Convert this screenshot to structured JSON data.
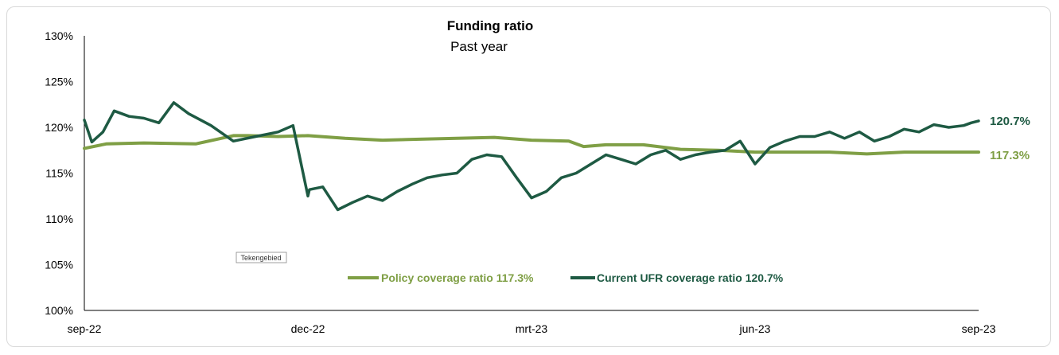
{
  "chart_data": {
    "type": "line",
    "title": "Funding ratio",
    "subtitle": "Past year",
    "ylim": [
      100,
      130
    ],
    "y_ticks": [
      "100%",
      "105%",
      "110%",
      "115%",
      "120%",
      "125%",
      "130%"
    ],
    "y_tick_values": [
      100,
      105,
      110,
      115,
      120,
      125,
      130
    ],
    "x_ticks": [
      "sep-22",
      "dec-22",
      "mrt-23",
      "jun-23",
      "sep-23"
    ],
    "x_tick_values": [
      0,
      3,
      6,
      9,
      12
    ],
    "xlim": [
      0,
      12
    ],
    "grid": false,
    "legend_position": "bottom-center",
    "drawing_area_label": "Tekengebied",
    "series": [
      {
        "name": "Policy coverage ratio 117.3%",
        "color": "#7f9f45",
        "end_label": "117.3%",
        "x": [
          0,
          0.3,
          0.8,
          1.5,
          2.0,
          2.2,
          2.6,
          3.0,
          3.5,
          4.0,
          4.5,
          5.0,
          5.5,
          6.0,
          6.5,
          6.7,
          7.0,
          7.5,
          8.0,
          8.5,
          9.0,
          9.5,
          10.0,
          10.5,
          11.0,
          11.5,
          12.0
        ],
        "y": [
          117.7,
          118.2,
          118.3,
          118.2,
          119.1,
          119.1,
          119.0,
          119.1,
          118.8,
          118.6,
          118.7,
          118.8,
          118.9,
          118.6,
          118.5,
          117.9,
          118.1,
          118.1,
          117.6,
          117.5,
          117.3,
          117.3,
          117.3,
          117.1,
          117.3,
          117.3,
          117.3
        ]
      },
      {
        "name": "Current UFR coverage ratio 120.7%",
        "color": "#1e5a43",
        "end_label": "120.7%",
        "x": [
          0,
          0.1,
          0.25,
          0.4,
          0.6,
          0.8,
          1.0,
          1.2,
          1.4,
          1.7,
          2.0,
          2.3,
          2.6,
          2.8,
          3.0,
          3.02,
          3.2,
          3.4,
          3.6,
          3.8,
          4.0,
          4.2,
          4.4,
          4.6,
          4.8,
          5.0,
          5.2,
          5.4,
          5.6,
          5.8,
          6.0,
          6.2,
          6.4,
          6.6,
          6.8,
          7.0,
          7.2,
          7.4,
          7.6,
          7.8,
          8.0,
          8.2,
          8.4,
          8.6,
          8.8,
          9.0,
          9.2,
          9.4,
          9.6,
          9.8,
          10.0,
          10.2,
          10.4,
          10.6,
          10.8,
          11.0,
          11.2,
          11.4,
          11.6,
          11.8,
          11.9,
          12.0
        ],
        "y": [
          120.8,
          118.4,
          119.5,
          121.8,
          121.2,
          121.0,
          120.5,
          122.7,
          121.5,
          120.2,
          118.5,
          119.0,
          119.5,
          120.2,
          112.5,
          113.2,
          113.5,
          111.0,
          111.8,
          112.5,
          112.0,
          113.0,
          113.8,
          114.5,
          114.8,
          115.0,
          116.5,
          117.0,
          116.8,
          114.5,
          112.3,
          113.0,
          114.5,
          115.0,
          116.0,
          117.0,
          116.5,
          116.0,
          117.0,
          117.5,
          116.5,
          117.0,
          117.3,
          117.5,
          118.5,
          116.0,
          117.8,
          118.5,
          119.0,
          119.0,
          119.5,
          118.8,
          119.5,
          118.5,
          119.0,
          119.8,
          119.5,
          120.3,
          120.0,
          120.2,
          120.5,
          120.7
        ]
      }
    ]
  }
}
